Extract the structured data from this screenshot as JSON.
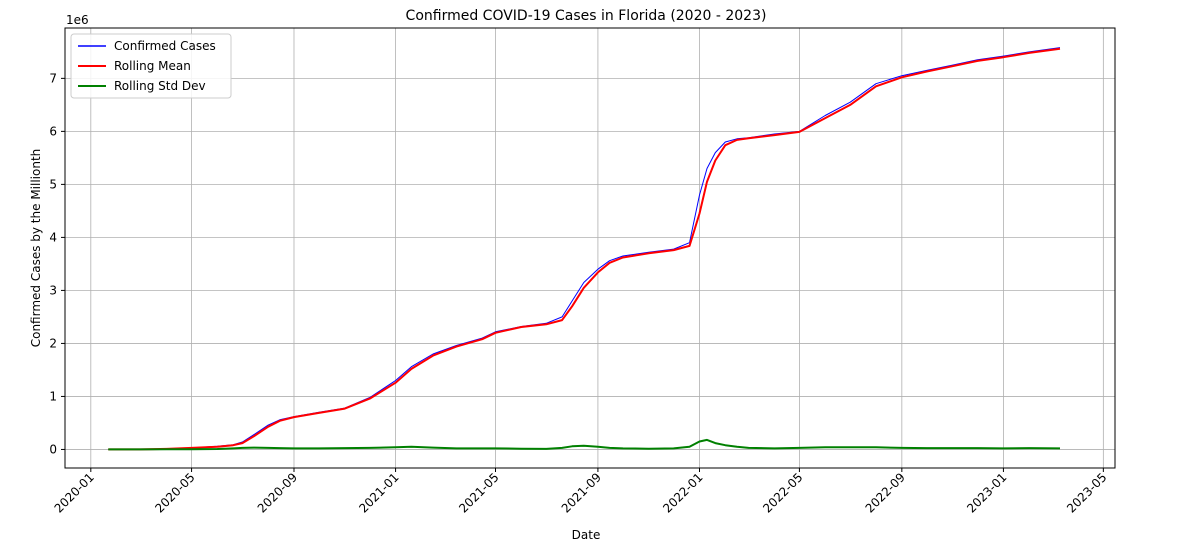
{
  "chart_data": {
    "type": "line",
    "title": "Confirmed COVID-19 Cases in Florida (2020 - 2023)",
    "xlabel": "Date",
    "ylabel": "Confirmed Cases by the Millionth",
    "y_offset_label": "1e6",
    "x_range": [
      "2019-12-01",
      "2023-05-15"
    ],
    "ylim": [
      -0.35,
      7.95
    ],
    "x_ticks": [
      "2020-01-01",
      "2020-05-01",
      "2020-09-01",
      "2021-01-01",
      "2021-05-01",
      "2021-09-01",
      "2022-01-01",
      "2022-05-01",
      "2022-09-01",
      "2023-01-01",
      "2023-05-01"
    ],
    "x_tick_labels": [
      "2020-01",
      "2020-05",
      "2020-09",
      "2021-01",
      "2021-05",
      "2021-09",
      "2022-01",
      "2022-05",
      "2022-09",
      "2023-01",
      "2023-05"
    ],
    "y_ticks": [
      0,
      1,
      2,
      3,
      4,
      5,
      6,
      7
    ],
    "y_tick_labels": [
      "0",
      "1",
      "2",
      "3",
      "4",
      "5",
      "6",
      "7"
    ],
    "grid": true,
    "legend_position": "top-left",
    "x": [
      "2020-01-22",
      "2020-03-01",
      "2020-04-01",
      "2020-05-01",
      "2020-06-01",
      "2020-06-20",
      "2020-07-01",
      "2020-07-15",
      "2020-08-01",
      "2020-08-15",
      "2020-09-01",
      "2020-10-01",
      "2020-11-01",
      "2020-12-01",
      "2021-01-01",
      "2021-01-20",
      "2021-02-15",
      "2021-03-15",
      "2021-04-15",
      "2021-05-01",
      "2021-06-01",
      "2021-07-01",
      "2021-07-20",
      "2021-08-01",
      "2021-08-15",
      "2021-09-01",
      "2021-09-15",
      "2021-10-01",
      "2021-11-01",
      "2021-12-01",
      "2021-12-20",
      "2022-01-01",
      "2022-01-10",
      "2022-01-20",
      "2022-02-01",
      "2022-02-15",
      "2022-03-01",
      "2022-04-01",
      "2022-05-01",
      "2022-06-01",
      "2022-07-01",
      "2022-08-01",
      "2022-09-01",
      "2022-10-01",
      "2022-11-01",
      "2022-12-01",
      "2023-01-01",
      "2023-02-01",
      "2023-03-10"
    ],
    "series": [
      {
        "name": "Confirmed Cases",
        "color": "#0000ff",
        "width": 1,
        "values": [
          0,
          0,
          0.01,
          0.03,
          0.06,
          0.09,
          0.14,
          0.28,
          0.46,
          0.56,
          0.62,
          0.7,
          0.78,
          0.98,
          1.3,
          1.56,
          1.8,
          1.96,
          2.1,
          2.22,
          2.32,
          2.38,
          2.5,
          2.8,
          3.15,
          3.4,
          3.56,
          3.65,
          3.72,
          3.78,
          3.9,
          4.8,
          5.3,
          5.6,
          5.8,
          5.86,
          5.88,
          5.95,
          6.0,
          6.3,
          6.55,
          6.9,
          7.05,
          7.15,
          7.25,
          7.35,
          7.42,
          7.5,
          7.58
        ]
      },
      {
        "name": "Rolling Mean",
        "color": "#ff0000",
        "width": 2,
        "values": [
          0,
          0,
          0.01,
          0.03,
          0.05,
          0.08,
          0.12,
          0.25,
          0.43,
          0.54,
          0.61,
          0.69,
          0.77,
          0.96,
          1.26,
          1.52,
          1.77,
          1.94,
          2.08,
          2.2,
          2.31,
          2.36,
          2.44,
          2.7,
          3.05,
          3.34,
          3.52,
          3.62,
          3.7,
          3.76,
          3.84,
          4.45,
          5.05,
          5.45,
          5.74,
          5.84,
          5.87,
          5.93,
          5.99,
          6.25,
          6.5,
          6.85,
          7.02,
          7.13,
          7.23,
          7.33,
          7.4,
          7.48,
          7.56
        ]
      },
      {
        "name": "Rolling Std Dev",
        "color": "#008000",
        "width": 2,
        "values": [
          0,
          0,
          0.002,
          0.005,
          0.008,
          0.02,
          0.03,
          0.035,
          0.03,
          0.025,
          0.02,
          0.02,
          0.025,
          0.03,
          0.04,
          0.05,
          0.035,
          0.02,
          0.02,
          0.02,
          0.015,
          0.01,
          0.03,
          0.06,
          0.07,
          0.05,
          0.03,
          0.02,
          0.015,
          0.02,
          0.05,
          0.15,
          0.18,
          0.12,
          0.08,
          0.05,
          0.03,
          0.02,
          0.03,
          0.04,
          0.04,
          0.04,
          0.03,
          0.025,
          0.025,
          0.025,
          0.02,
          0.025,
          0.02
        ]
      }
    ]
  }
}
